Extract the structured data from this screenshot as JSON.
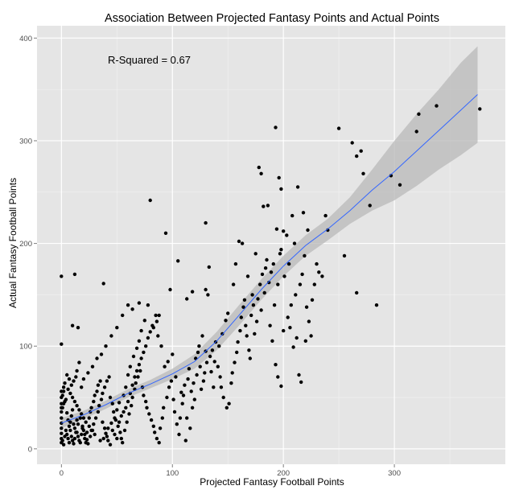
{
  "chart_data": {
    "type": "scatter",
    "title": "Association Between Projected Fantasy Points and Actual Points",
    "xlabel": "Projected Fantasy Football Points",
    "ylabel": "Actual Fantasy Football Points",
    "annotation": "R-Squared = 0.67",
    "xlim": [
      -22,
      400
    ],
    "ylim": [
      -15,
      412
    ],
    "x_ticks": [
      0,
      100,
      200,
      300
    ],
    "x_tick_labels": [
      "0",
      "100",
      "200",
      "300"
    ],
    "y_ticks": [
      0,
      100,
      200,
      300,
      400
    ],
    "y_tick_labels": [
      "0",
      "100",
      "200",
      "300",
      "400"
    ],
    "grid": true,
    "colors": {
      "panel": "#e5e5e5",
      "grid": "#ffffff",
      "points": "#000000",
      "smooth_line": "#3366ff",
      "confidence_band": "#b8b8b8"
    },
    "smooth_curve": {
      "x": [
        0,
        20,
        40,
        60,
        80,
        100,
        120,
        140,
        160,
        180,
        200,
        220,
        240,
        260,
        280,
        300,
        320,
        340,
        360,
        375
      ],
      "y": [
        25,
        33,
        43,
        54,
        63,
        73,
        85,
        105,
        130,
        155,
        178,
        198,
        214,
        232,
        252,
        270,
        290,
        310,
        330,
        345
      ],
      "upper": [
        30,
        37,
        47,
        58,
        67,
        78,
        92,
        114,
        140,
        165,
        188,
        208,
        224,
        245,
        272,
        300,
        326,
        350,
        376,
        392
      ],
      "lower": [
        20,
        29,
        39,
        50,
        59,
        68,
        78,
        96,
        120,
        145,
        168,
        188,
        203,
        219,
        232,
        242,
        256,
        272,
        286,
        298
      ]
    },
    "points": [
      [
        0,
        168
      ],
      [
        0,
        102
      ],
      [
        10,
        120
      ],
      [
        12,
        170
      ],
      [
        15,
        118
      ],
      [
        38,
        161
      ],
      [
        80,
        242
      ],
      [
        94,
        210
      ],
      [
        105,
        183
      ],
      [
        118,
        153
      ],
      [
        130,
        220
      ],
      [
        133,
        177
      ],
      [
        130,
        155
      ],
      [
        113,
        146
      ],
      [
        98,
        155
      ],
      [
        175,
        190
      ],
      [
        178,
        274
      ],
      [
        180,
        268
      ],
      [
        182,
        236
      ],
      [
        186,
        237
      ],
      [
        193,
        313
      ],
      [
        196,
        264
      ],
      [
        198,
        253
      ],
      [
        194,
        214
      ],
      [
        200,
        212
      ],
      [
        203,
        208
      ],
      [
        198,
        194
      ],
      [
        208,
        227
      ],
      [
        213,
        255
      ],
      [
        222,
        213
      ],
      [
        238,
        227
      ],
      [
        250,
        312
      ],
      [
        262,
        298
      ],
      [
        266,
        285
      ],
      [
        266,
        152
      ],
      [
        270,
        290
      ],
      [
        272,
        268
      ],
      [
        278,
        237
      ],
      [
        284,
        140
      ],
      [
        297,
        266
      ],
      [
        305,
        257
      ],
      [
        320,
        309
      ],
      [
        322,
        326
      ],
      [
        338,
        334
      ],
      [
        377,
        331
      ],
      [
        255,
        188
      ],
      [
        240,
        213
      ],
      [
        218,
        230
      ],
      [
        210,
        200
      ],
      [
        205,
        180
      ],
      [
        195,
        160
      ],
      [
        192,
        140
      ],
      [
        190,
        105
      ],
      [
        193,
        82
      ],
      [
        195,
        70
      ],
      [
        198,
        61
      ],
      [
        209,
        99
      ],
      [
        212,
        108
      ],
      [
        214,
        72
      ],
      [
        216,
        65
      ],
      [
        220,
        105
      ],
      [
        225,
        110
      ],
      [
        200,
        115
      ],
      [
        188,
        120
      ],
      [
        180,
        135
      ],
      [
        172,
        150
      ],
      [
        168,
        168
      ],
      [
        163,
        200
      ],
      [
        160,
        202
      ],
      [
        157,
        180
      ],
      [
        155,
        160
      ],
      [
        150,
        132
      ],
      [
        148,
        125
      ],
      [
        145,
        112
      ],
      [
        142,
        100
      ],
      [
        138,
        85
      ],
      [
        135,
        75
      ],
      [
        137,
        60
      ],
      [
        130,
        95
      ],
      [
        132,
        150
      ],
      [
        127,
        110
      ],
      [
        125,
        80
      ],
      [
        122,
        72
      ],
      [
        120,
        48
      ],
      [
        118,
        40
      ],
      [
        116,
        20
      ],
      [
        112,
        8
      ],
      [
        113,
        30
      ],
      [
        108,
        55
      ],
      [
        103,
        70
      ],
      [
        100,
        92
      ],
      [
        96,
        85
      ],
      [
        93,
        80
      ],
      [
        90,
        100
      ],
      [
        87,
        110
      ],
      [
        85,
        130
      ],
      [
        82,
        120
      ],
      [
        78,
        140
      ],
      [
        75,
        125
      ],
      [
        72,
        115
      ],
      [
        70,
        105
      ],
      [
        68,
        98
      ],
      [
        65,
        90
      ],
      [
        62,
        80
      ],
      [
        60,
        72
      ],
      [
        58,
        60
      ],
      [
        56,
        52
      ],
      [
        52,
        45
      ],
      [
        50,
        38
      ],
      [
        48,
        30
      ],
      [
        45,
        25
      ],
      [
        42,
        20
      ],
      [
        40,
        15
      ],
      [
        38,
        10
      ],
      [
        35,
        8
      ],
      [
        30,
        14
      ],
      [
        28,
        18
      ],
      [
        25,
        22
      ],
      [
        22,
        26
      ],
      [
        20,
        30
      ],
      [
        18,
        34
      ],
      [
        16,
        38
      ],
      [
        14,
        42
      ],
      [
        12,
        46
      ],
      [
        10,
        50
      ],
      [
        8,
        54
      ],
      [
        6,
        58
      ],
      [
        4,
        48
      ],
      [
        2,
        44
      ],
      [
        1,
        40
      ],
      [
        0,
        36
      ],
      [
        0,
        30
      ],
      [
        0,
        25
      ],
      [
        0,
        20
      ],
      [
        0,
        15
      ],
      [
        0,
        10
      ],
      [
        0,
        6
      ],
      [
        1,
        52
      ],
      [
        2,
        56
      ],
      [
        3,
        46
      ],
      [
        5,
        35
      ],
      [
        6,
        28
      ],
      [
        7,
        22
      ],
      [
        8,
        18
      ],
      [
        9,
        12
      ],
      [
        10,
        8
      ],
      [
        11,
        5
      ],
      [
        12,
        10
      ],
      [
        14,
        16
      ],
      [
        15,
        24
      ],
      [
        17,
        30
      ],
      [
        19,
        20
      ],
      [
        21,
        14
      ],
      [
        23,
        9
      ],
      [
        24,
        5
      ],
      [
        26,
        12
      ],
      [
        27,
        18
      ],
      [
        29,
        24
      ],
      [
        31,
        30
      ],
      [
        33,
        36
      ],
      [
        34,
        42
      ],
      [
        36,
        48
      ],
      [
        37,
        54
      ],
      [
        39,
        60
      ],
      [
        41,
        66
      ],
      [
        43,
        70
      ],
      [
        44,
        50
      ],
      [
        46,
        44
      ],
      [
        47,
        36
      ],
      [
        49,
        28
      ],
      [
        51,
        22
      ],
      [
        53,
        16
      ],
      [
        54,
        10
      ],
      [
        55,
        6
      ],
      [
        57,
        18
      ],
      [
        59,
        26
      ],
      [
        61,
        34
      ],
      [
        63,
        42
      ],
      [
        64,
        50
      ],
      [
        66,
        58
      ],
      [
        67,
        64
      ],
      [
        69,
        70
      ],
      [
        71,
        76
      ],
      [
        73,
        60
      ],
      [
        74,
        52
      ],
      [
        76,
        46
      ],
      [
        77,
        40
      ],
      [
        79,
        34
      ],
      [
        81,
        28
      ],
      [
        83,
        22
      ],
      [
        84,
        16
      ],
      [
        86,
        10
      ],
      [
        88,
        6
      ],
      [
        89,
        20
      ],
      [
        91,
        30
      ],
      [
        92,
        40
      ],
      [
        95,
        50
      ],
      [
        97,
        60
      ],
      [
        99,
        66
      ],
      [
        101,
        48
      ],
      [
        102,
        36
      ],
      [
        104,
        24
      ],
      [
        106,
        14
      ],
      [
        107,
        30
      ],
      [
        109,
        44
      ],
      [
        110,
        52
      ],
      [
        111,
        62
      ],
      [
        114,
        68
      ],
      [
        115,
        78
      ],
      [
        117,
        56
      ],
      [
        119,
        64
      ],
      [
        121,
        88
      ],
      [
        123,
        94
      ],
      [
        124,
        100
      ],
      [
        126,
        58
      ],
      [
        128,
        66
      ],
      [
        129,
        74
      ],
      [
        131,
        84
      ],
      [
        134,
        90
      ],
      [
        136,
        96
      ],
      [
        139,
        104
      ],
      [
        141,
        80
      ],
      [
        143,
        70
      ],
      [
        144,
        60
      ],
      [
        146,
        50
      ],
      [
        149,
        40
      ],
      [
        151,
        44
      ],
      [
        153,
        64
      ],
      [
        154,
        74
      ],
      [
        156,
        84
      ],
      [
        158,
        94
      ],
      [
        159,
        104
      ],
      [
        161,
        115
      ],
      [
        162,
        128
      ],
      [
        164,
        138
      ],
      [
        165,
        145
      ],
      [
        166,
        120
      ],
      [
        167,
        110
      ],
      [
        169,
        96
      ],
      [
        170,
        88
      ],
      [
        171,
        130
      ],
      [
        173,
        140
      ],
      [
        174,
        112
      ],
      [
        176,
        124
      ],
      [
        177,
        146
      ],
      [
        179,
        160
      ],
      [
        181,
        170
      ],
      [
        183,
        152
      ],
      [
        184,
        176
      ],
      [
        185,
        184
      ],
      [
        187,
        162
      ],
      [
        189,
        172
      ],
      [
        191,
        180
      ],
      [
        197,
        190
      ],
      [
        201,
        168
      ],
      [
        204,
        128
      ],
      [
        206,
        118
      ],
      [
        207,
        140
      ],
      [
        211,
        150
      ],
      [
        215,
        160
      ],
      [
        217,
        170
      ],
      [
        219,
        188
      ],
      [
        221,
        138
      ],
      [
        223,
        124
      ],
      [
        226,
        145
      ],
      [
        228,
        160
      ],
      [
        230,
        180
      ],
      [
        232,
        172
      ],
      [
        235,
        168
      ],
      [
        60,
        140
      ],
      [
        64,
        136
      ],
      [
        70,
        142
      ],
      [
        55,
        130
      ],
      [
        50,
        118
      ],
      [
        45,
        110
      ],
      [
        40,
        100
      ],
      [
        36,
        92
      ],
      [
        32,
        88
      ],
      [
        28,
        80
      ],
      [
        24,
        74
      ],
      [
        20,
        68
      ],
      [
        18,
        60
      ],
      [
        16,
        84
      ],
      [
        14,
        76
      ],
      [
        13,
        70
      ],
      [
        11,
        66
      ],
      [
        9,
        62
      ],
      [
        7,
        68
      ],
      [
        5,
        72
      ],
      [
        3,
        64
      ],
      [
        2,
        60
      ],
      [
        0,
        56
      ],
      [
        0,
        50
      ],
      [
        0,
        44
      ],
      [
        0,
        40
      ],
      [
        1,
        8
      ],
      [
        2,
        4
      ],
      [
        3,
        12
      ],
      [
        4,
        18
      ],
      [
        5,
        14
      ],
      [
        6,
        10
      ],
      [
        7,
        6
      ],
      [
        8,
        26
      ],
      [
        9,
        32
      ],
      [
        10,
        38
      ],
      [
        11,
        24
      ],
      [
        12,
        20
      ],
      [
        13,
        16
      ],
      [
        14,
        28
      ],
      [
        15,
        12
      ],
      [
        16,
        8
      ],
      [
        17,
        6
      ],
      [
        18,
        14
      ],
      [
        19,
        22
      ],
      [
        20,
        18
      ],
      [
        21,
        10
      ],
      [
        22,
        6
      ],
      [
        23,
        16
      ],
      [
        25,
        30
      ],
      [
        26,
        36
      ],
      [
        27,
        40
      ],
      [
        29,
        46
      ],
      [
        30,
        52
      ],
      [
        32,
        56
      ],
      [
        33,
        62
      ],
      [
        35,
        66
      ],
      [
        37,
        26
      ],
      [
        39,
        20
      ],
      [
        41,
        12
      ],
      [
        42,
        8
      ],
      [
        44,
        4
      ],
      [
        46,
        18
      ],
      [
        48,
        14
      ],
      [
        50,
        10
      ],
      [
        52,
        26
      ],
      [
        54,
        32
      ],
      [
        56,
        36
      ],
      [
        58,
        40
      ],
      [
        60,
        46
      ],
      [
        62,
        54
      ],
      [
        64,
        62
      ],
      [
        66,
        70
      ],
      [
        68,
        76
      ],
      [
        70,
        82
      ],
      [
        72,
        88
      ],
      [
        74,
        94
      ],
      [
        76,
        100
      ],
      [
        78,
        108
      ],
      [
        80,
        114
      ],
      [
        83,
        118
      ],
      [
        86,
        124
      ],
      [
        88,
        130
      ]
    ]
  }
}
